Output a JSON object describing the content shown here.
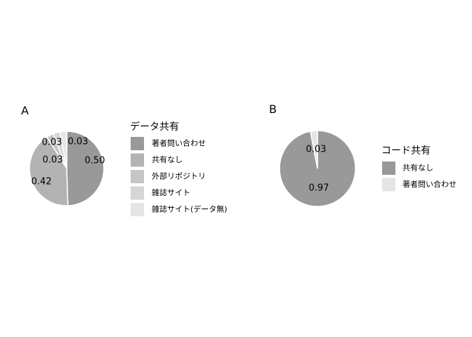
{
  "chart_data": [
    {
      "type": "pie",
      "panel_label": "A",
      "title": "",
      "legend_title": "データ共有",
      "categories": [
        "著者問い合わせ",
        "共有なし",
        "外部リポジトリ",
        "雑誌サイト",
        "雑誌サイト(データ無)"
      ],
      "values": [
        0.5,
        0.42,
        0.03,
        0.03,
        0.03
      ],
      "data_labels": [
        "0.50",
        "0.42",
        "0.03",
        "0.03",
        "0.03"
      ],
      "colors": [
        "#999999",
        "#b3b3b3",
        "#c6c6c6",
        "#d6d6d6",
        "#e5e5e5"
      ],
      "legend_position": "right"
    },
    {
      "type": "pie",
      "panel_label": "B",
      "title": "",
      "legend_title": "コード共有",
      "categories": [
        "共有なし",
        "著者問い合わせ"
      ],
      "values": [
        0.97,
        0.03
      ],
      "data_labels": [
        "0.97",
        "0.03"
      ],
      "colors": [
        "#999999",
        "#e5e5e5"
      ],
      "legend_position": "right"
    }
  ]
}
